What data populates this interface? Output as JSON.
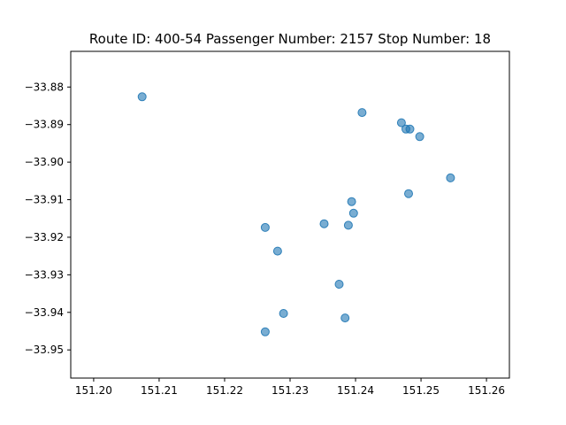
{
  "chart_data": {
    "type": "scatter",
    "title": "Route ID: 400-54  Passenger Number: 2157  Stop Number: 18",
    "xlabel": "",
    "ylabel": "",
    "xlim": [
      151.1965,
      151.2635
    ],
    "ylim": [
      -33.9575,
      -33.8705
    ],
    "xticks": [
      151.2,
      151.21,
      151.22,
      151.23,
      151.24,
      151.25,
      151.26
    ],
    "xtick_labels": [
      "151.20",
      "151.21",
      "151.22",
      "151.23",
      "151.24",
      "151.25",
      "151.26"
    ],
    "yticks": [
      -33.88,
      -33.89,
      -33.9,
      -33.91,
      -33.92,
      -33.93,
      -33.94,
      -33.95
    ],
    "ytick_labels": [
      "−33.88",
      "−33.89",
      "−33.90",
      "−33.91",
      "−33.92",
      "−33.93",
      "−33.94",
      "−33.95"
    ],
    "grid": false,
    "marker_color": "#1f77b4",
    "marker_alpha": 0.6,
    "points": [
      {
        "x": 151.2074,
        "y": -33.8826
      },
      {
        "x": 151.241,
        "y": -33.8868
      },
      {
        "x": 151.247,
        "y": -33.8895
      },
      {
        "x": 151.2477,
        "y": -33.8912
      },
      {
        "x": 151.2483,
        "y": -33.8912
      },
      {
        "x": 151.2498,
        "y": -33.8932
      },
      {
        "x": 151.2545,
        "y": -33.9042
      },
      {
        "x": 151.2481,
        "y": -33.9084
      },
      {
        "x": 151.2394,
        "y": -33.9105
      },
      {
        "x": 151.2397,
        "y": -33.9136
      },
      {
        "x": 151.2352,
        "y": -33.9164
      },
      {
        "x": 151.2389,
        "y": -33.9168
      },
      {
        "x": 151.2262,
        "y": -33.9174
      },
      {
        "x": 151.2281,
        "y": -33.9237
      },
      {
        "x": 151.2375,
        "y": -33.9325
      },
      {
        "x": 151.229,
        "y": -33.9403
      },
      {
        "x": 151.2384,
        "y": -33.9415
      },
      {
        "x": 151.2262,
        "y": -33.9452
      }
    ]
  }
}
